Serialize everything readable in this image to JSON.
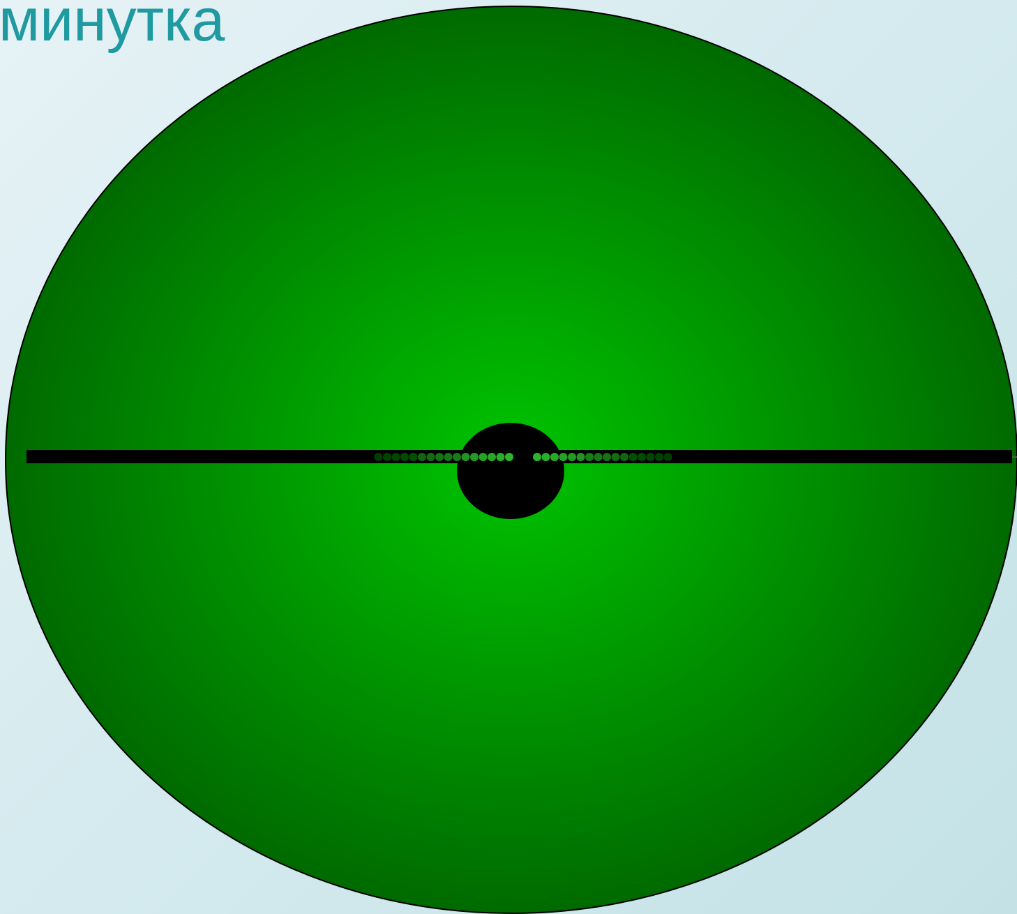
{
  "slide": {
    "title": "минутка"
  },
  "figure": {
    "disc_center_color": "#00c400",
    "disc_edge_color": "#006a00",
    "outline_color": "#000000",
    "bar_color": "#000000",
    "hub_color": "#000000",
    "dot_colors": [
      "#008800",
      "#1ea01e",
      "#2ab52a"
    ]
  }
}
